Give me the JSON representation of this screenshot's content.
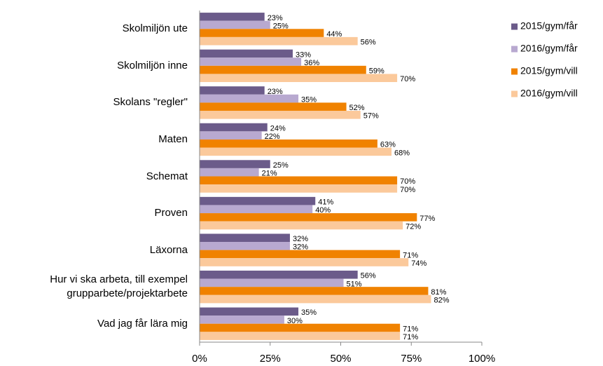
{
  "chart_data": {
    "type": "bar",
    "orientation": "horizontal",
    "categories": [
      "Skolmiljön ute",
      "Skolmiljön inne",
      "Skolans \"regler\"",
      "Maten",
      "Schemat",
      "Proven",
      "Läxorna",
      "Hur vi ska arbeta, till exempel\ngrupparbete/projektarbete",
      "Vad jag får lära mig"
    ],
    "series": [
      {
        "name": "2015/gym/får",
        "color": "#6b5b8a",
        "values": [
          23,
          33,
          23,
          24,
          25,
          41,
          32,
          56,
          35
        ],
        "value_labels": [
          "23%",
          "33%",
          "23%",
          "24%",
          "25%",
          "41%",
          "32%",
          "56%",
          "35%"
        ]
      },
      {
        "name": "2016/gym/får",
        "color": "#b8a9d0",
        "values": [
          25,
          36,
          35,
          22,
          21,
          40,
          32,
          51,
          30
        ],
        "value_labels": [
          "25%",
          "36%",
          "35%",
          "22%",
          "21%",
          "40%",
          "32%",
          "51%",
          "30%"
        ]
      },
      {
        "name": "2015/gym/vill",
        "color": "#f08200",
        "values": [
          44,
          59,
          52,
          63,
          70,
          77,
          71,
          81,
          71
        ],
        "value_labels": [
          "44%",
          "59%",
          "52%",
          "63%",
          "70%",
          "77%",
          "71%",
          "81%",
          "71%"
        ]
      },
      {
        "name": "2016/gym/vill",
        "color": "#fbc99b",
        "values": [
          56,
          70,
          57,
          68,
          70,
          72,
          74,
          82,
          71
        ],
        "value_labels": [
          "56%",
          "70%",
          "57%",
          "68%",
          "70%",
          "72%",
          "74%",
          "82%",
          "71%"
        ]
      }
    ],
    "xlim": [
      0,
      100
    ],
    "xticks": [
      {
        "value": 0,
        "label": "0%"
      },
      {
        "value": 25,
        "label": "25%"
      },
      {
        "value": 50,
        "label": "50%"
      },
      {
        "value": 75,
        "label": "75%"
      },
      {
        "value": 100,
        "label": "100%"
      }
    ],
    "legend": "right"
  }
}
